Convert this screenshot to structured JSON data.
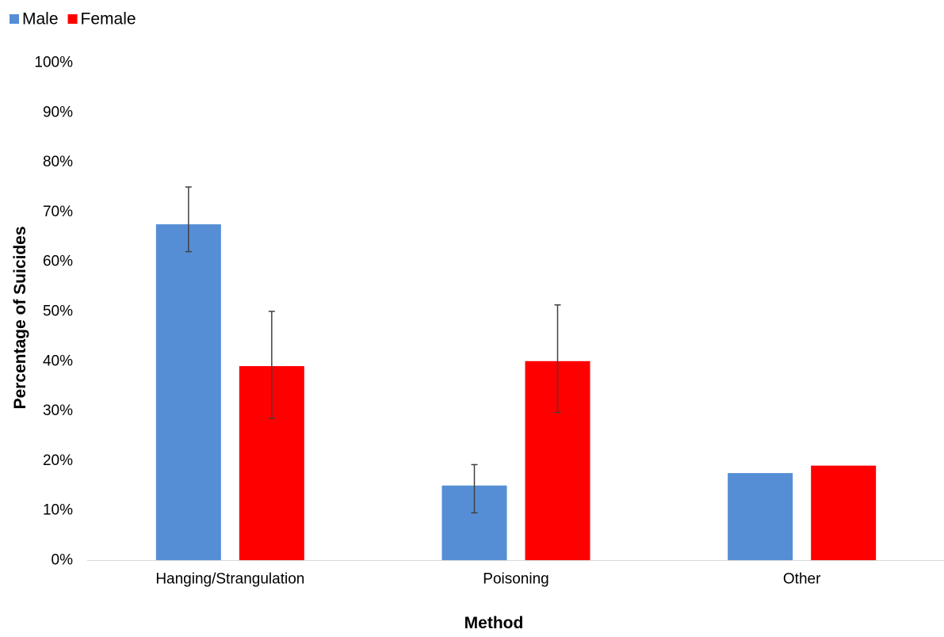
{
  "chart_data": {
    "type": "bar",
    "title": "",
    "xlabel": "Method",
    "ylabel": "Percentage of Suicides",
    "categories": [
      "Hanging/Strangulation",
      "Poisoning",
      "Other"
    ],
    "series": [
      {
        "name": "Male",
        "color": "#558ed5",
        "values": [
          67.5,
          15.0,
          17.5
        ],
        "error_low": [
          62.0,
          9.5,
          null
        ],
        "error_high": [
          75.0,
          19.2,
          null
        ]
      },
      {
        "name": "Female",
        "color": "#ff0000",
        "values": [
          39.0,
          40.0,
          19.0
        ],
        "error_low": [
          28.5,
          29.7,
          null
        ],
        "error_high": [
          50.0,
          51.3,
          null
        ]
      }
    ],
    "ylim": [
      0,
      100
    ],
    "yticks": [
      "0%",
      "10%",
      "20%",
      "30%",
      "40%",
      "50%",
      "60%",
      "70%",
      "80%",
      "90%",
      "100%"
    ],
    "grid": false,
    "legend_position": "top-left",
    "error_bar_color": "#404040"
  }
}
